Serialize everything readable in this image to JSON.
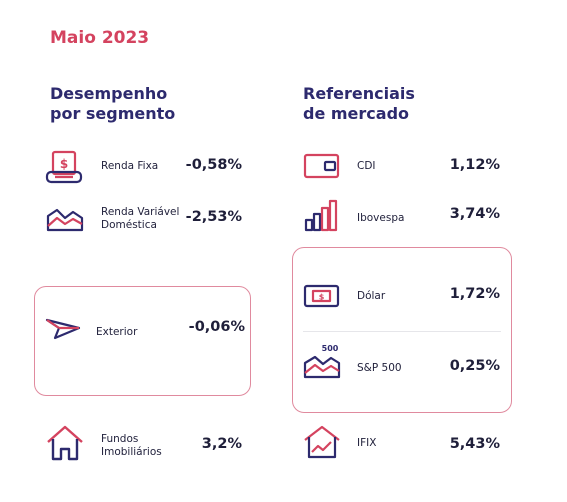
{
  "month": "Maio 2023",
  "left": {
    "title_line1": "Desempenho",
    "title_line2": "por segmento",
    "items": [
      {
        "label1": "Renda Fixa",
        "label2": "",
        "value": "-0,58%",
        "icon": "money-receipt-icon"
      },
      {
        "label1": "Renda Variável",
        "label2": "Doméstica",
        "value": "-2,53%",
        "icon": "market-chart-icon"
      },
      {
        "label1": "Exterior",
        "label2": "",
        "value": "-0,06%",
        "icon": "paper-plane-icon"
      },
      {
        "label1": "Fundos",
        "label2": "Imobiliários",
        "value": "3,2%",
        "icon": "house-icon"
      }
    ]
  },
  "right": {
    "title_line1": "Referenciais",
    "title_line2": "de mercado",
    "items": [
      {
        "label": "CDI",
        "value": "1,12%",
        "icon": "wallet-icon"
      },
      {
        "label": "Ibovespa",
        "value": "3,74%",
        "icon": "bar-growth-icon"
      },
      {
        "label": "Dólar",
        "value": "1,72%",
        "icon": "banknote-icon"
      },
      {
        "label": "S&P 500",
        "value": "0,25%",
        "icon": "sp500-chart-icon",
        "icon_text": "500"
      },
      {
        "label": "IFIX",
        "value": "5,43%",
        "icon": "house-chart-icon"
      }
    ]
  },
  "colors": {
    "pink": "#d4435f",
    "navy": "#2d2a6e",
    "border": "#e08a9e"
  }
}
